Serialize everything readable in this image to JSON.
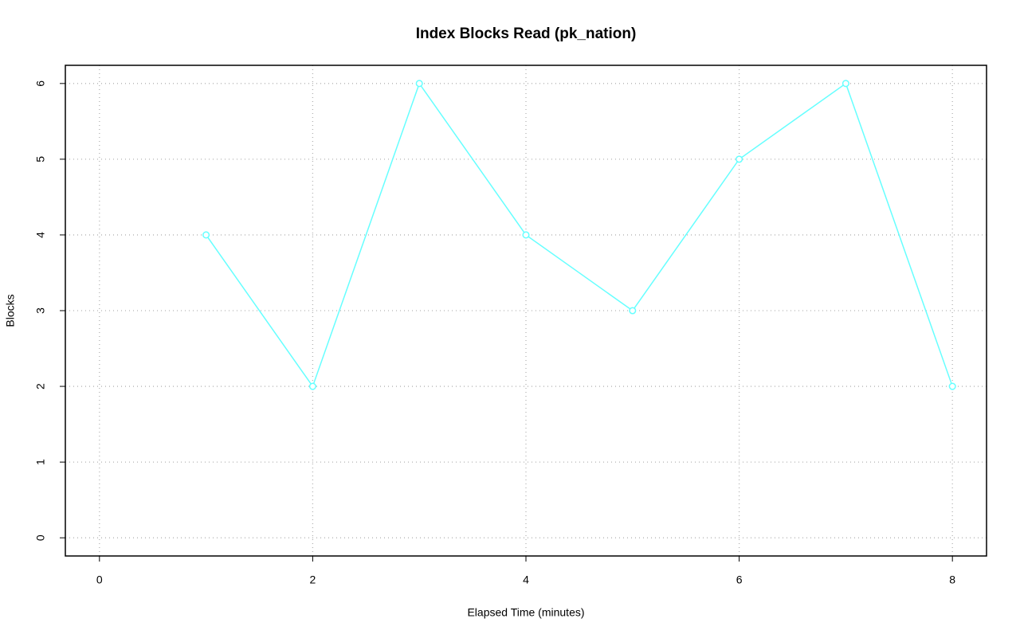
{
  "chart_data": {
    "type": "line",
    "title": "Index Blocks Read (pk_nation)",
    "x_label": "Elapsed Time (minutes)",
    "y_label": "Blocks",
    "x": [
      1,
      2,
      3,
      4,
      5,
      6,
      7,
      8
    ],
    "series": [
      {
        "name": "pk_nation",
        "color": "#66ffff",
        "values": [
          4,
          2,
          6,
          4,
          3,
          5,
          6,
          2
        ]
      }
    ],
    "xlim": [
      -0.32,
      8.32
    ],
    "xticks": [
      0,
      2,
      4,
      6,
      8
    ],
    "ylim": [
      -0.24,
      6.24
    ],
    "yticks": [
      0,
      1,
      2,
      3,
      4,
      5,
      6
    ],
    "grid": true,
    "markers": true
  }
}
